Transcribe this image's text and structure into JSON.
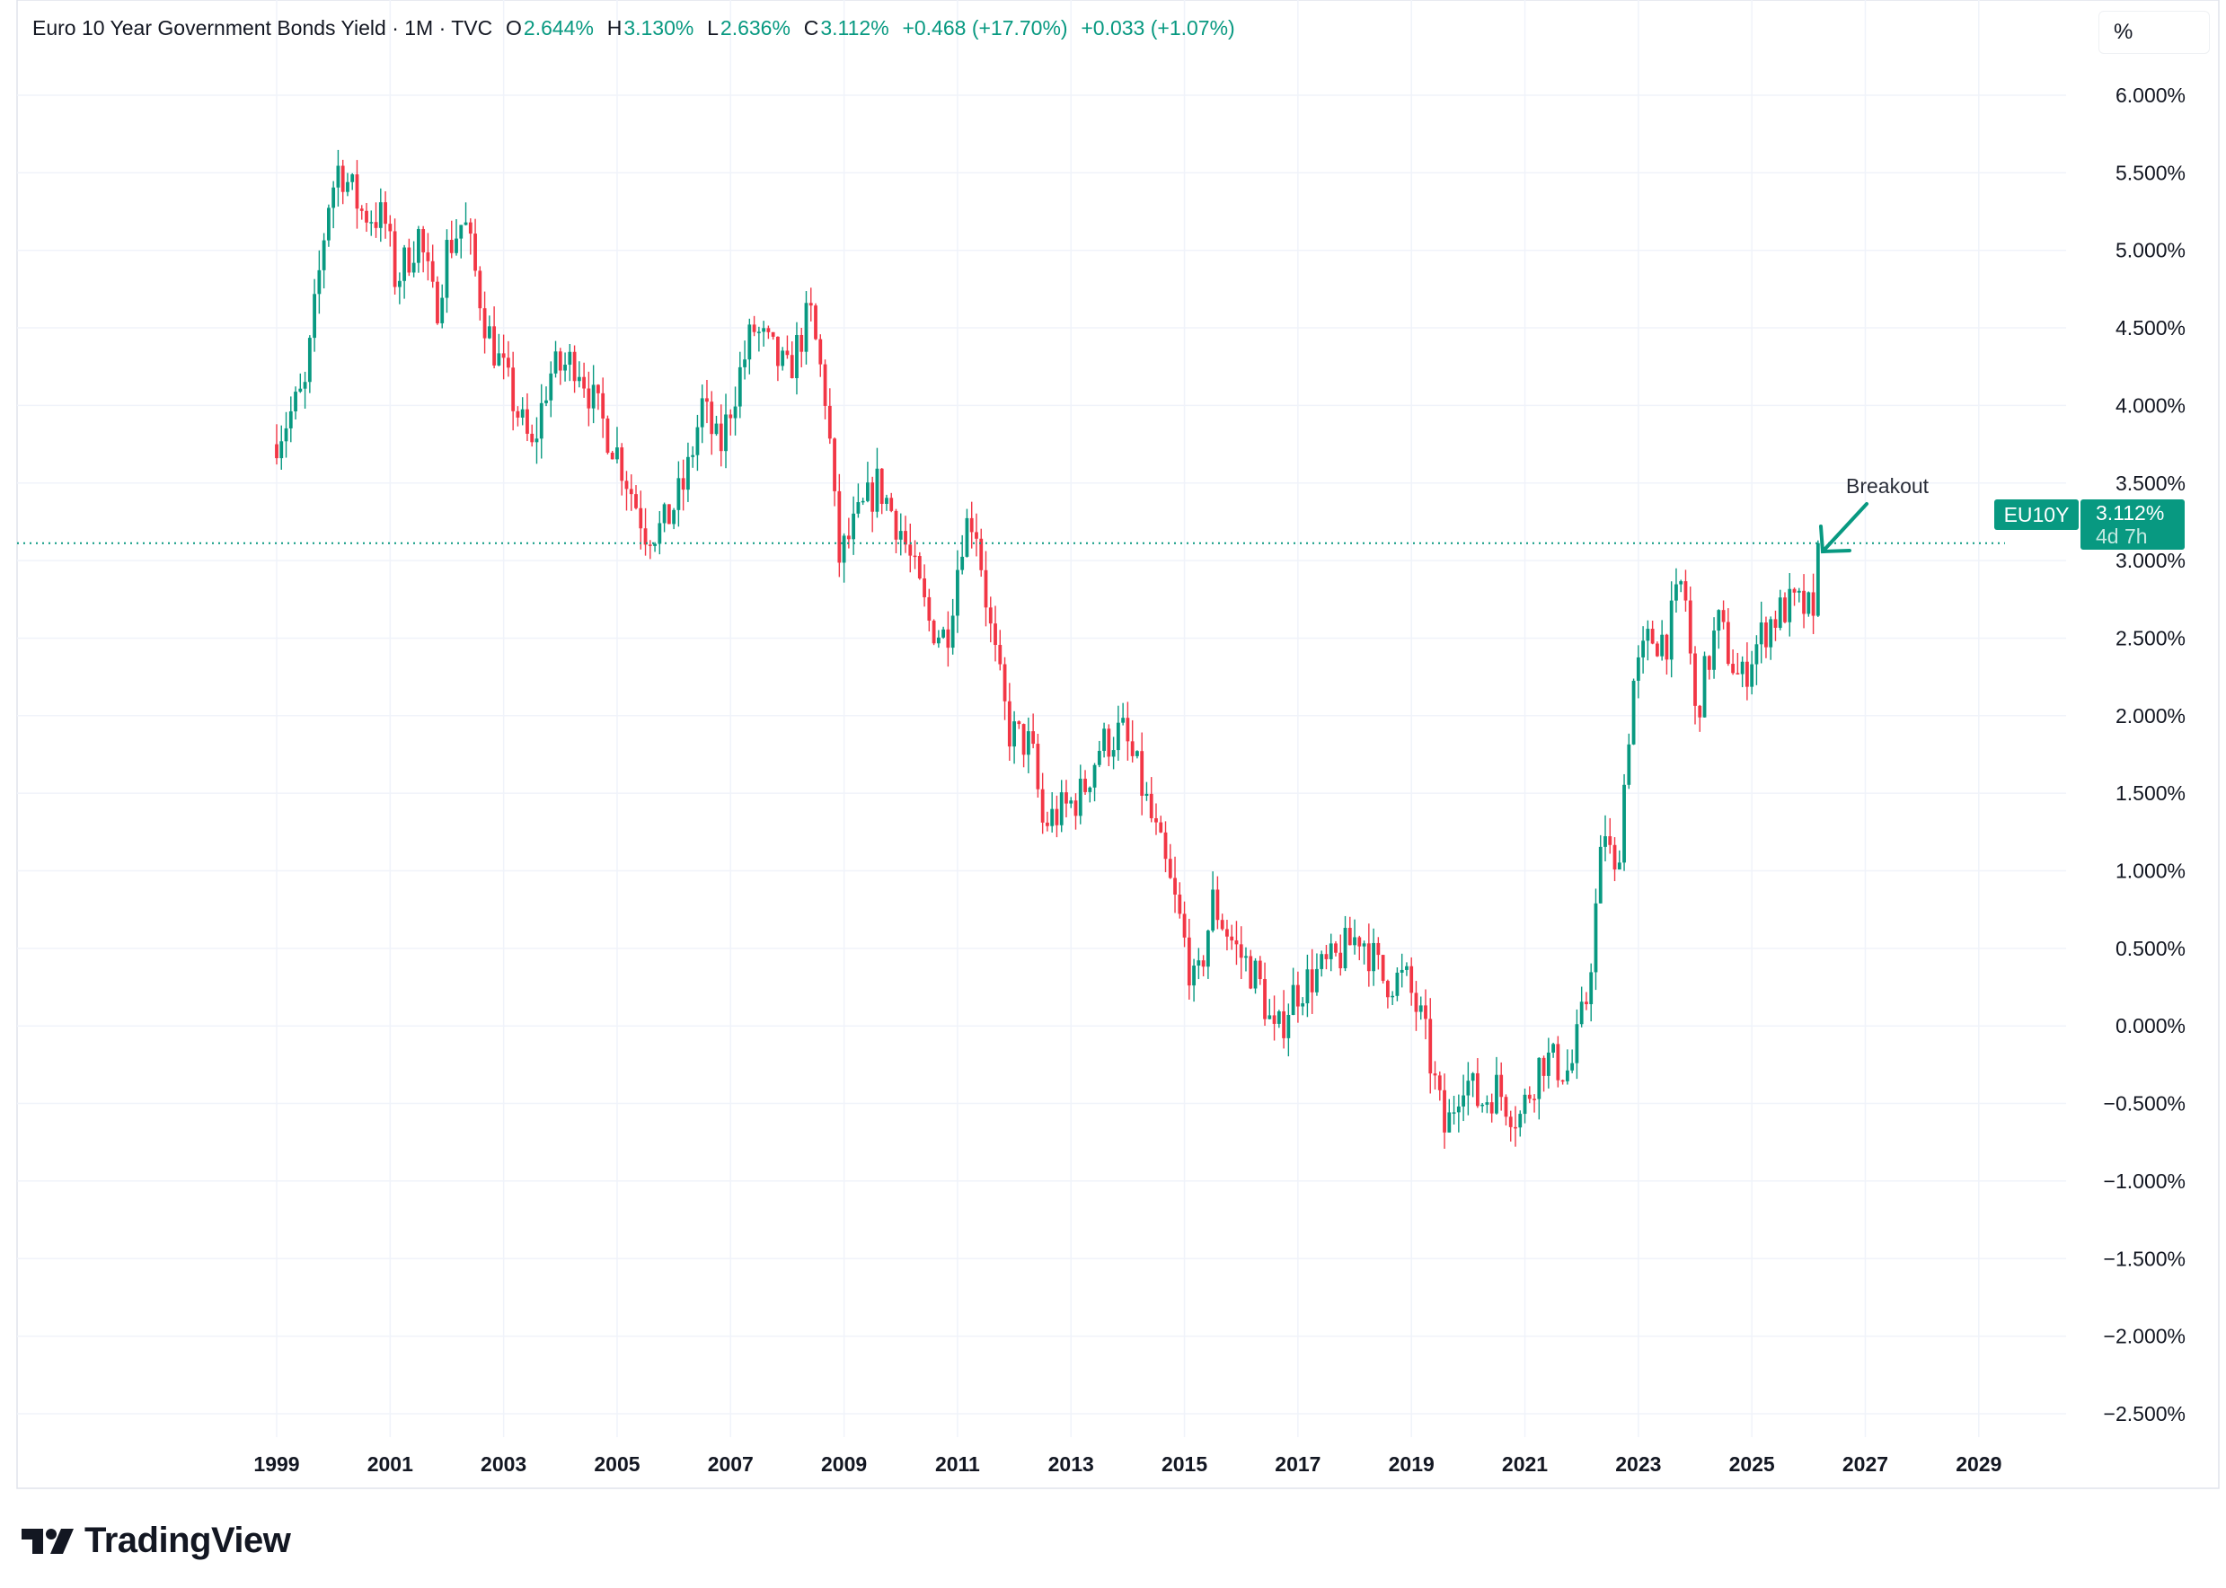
{
  "header": {
    "title": "Euro 10 Year Government Bonds Yield · 1M · TVC",
    "open_label": "O",
    "open": "2.644%",
    "high_label": "H",
    "high": "3.130%",
    "low_label": "L",
    "low": "2.636%",
    "close_label": "C",
    "close": "3.112%",
    "change": "+0.468 (+17.70%)",
    "change2": "+0.033 (+1.07%)"
  },
  "scale_button": "%",
  "price_label": {
    "symbol": "EU10Y",
    "price": "3.112%",
    "countdown": "4d 7h"
  },
  "annotation": "Breakout",
  "brand": "TradingView",
  "colors": {
    "up": "#089981",
    "down": "#F23645",
    "grid": "#f0f3fa",
    "text": "#131722"
  },
  "chart_data": {
    "type": "candlestick",
    "title": "Euro 10 Year Government Bonds Yield",
    "interval": "1M",
    "ylabel": "%",
    "ylim": [
      -2.5,
      6.0
    ],
    "y_ticks": [
      "6.000%",
      "5.500%",
      "5.000%",
      "4.500%",
      "4.000%",
      "3.500%",
      "3.000%",
      "2.500%",
      "2.000%",
      "1.500%",
      "1.000%",
      "0.500%",
      "0.000%",
      "−0.500%",
      "−1.000%",
      "−1.500%",
      "−2.000%",
      "−2.500%"
    ],
    "y_tick_values": [
      6,
      5.5,
      5,
      4.5,
      4,
      3.5,
      3,
      2.5,
      2,
      1.5,
      1,
      0.5,
      0,
      -0.5,
      -1,
      -1.5,
      -2,
      -2.5
    ],
    "x_ticks": [
      "1999",
      "2001",
      "2003",
      "2005",
      "2007",
      "2009",
      "2011",
      "2013",
      "2015",
      "2017",
      "2019",
      "2021",
      "2023",
      "2025",
      "2027",
      "2029"
    ],
    "last_price": 3.112,
    "last_candle": {
      "open": 2.644,
      "high": 3.13,
      "low": 2.636,
      "close": 3.112
    },
    "close_anchors": [
      [
        1999.0,
        3.8
      ],
      [
        1999.5,
        4.1
      ],
      [
        1999.9,
        5.3
      ],
      [
        2000.1,
        5.55
      ],
      [
        2000.5,
        5.25
      ],
      [
        2000.9,
        5.2
      ],
      [
        2001.1,
        4.8
      ],
      [
        2001.5,
        5.1
      ],
      [
        2001.8,
        4.6
      ],
      [
        2002.0,
        5.0
      ],
      [
        2002.3,
        5.2
      ],
      [
        2002.7,
        4.5
      ],
      [
        2003.0,
        4.2
      ],
      [
        2003.5,
        3.7
      ],
      [
        2003.8,
        4.2
      ],
      [
        2004.3,
        4.3
      ],
      [
        2004.6,
        4.0
      ],
      [
        2005.0,
        3.7
      ],
      [
        2005.5,
        3.2
      ],
      [
        2005.8,
        3.2
      ],
      [
        2006.2,
        3.5
      ],
      [
        2006.5,
        4.0
      ],
      [
        2006.8,
        3.7
      ],
      [
        2007.0,
        4.0
      ],
      [
        2007.4,
        4.5
      ],
      [
        2007.6,
        4.4
      ],
      [
        2008.0,
        4.2
      ],
      [
        2008.4,
        4.6
      ],
      [
        2008.7,
        4.0
      ],
      [
        2008.9,
        3.0
      ],
      [
        2009.3,
        3.3
      ],
      [
        2009.6,
        3.5
      ],
      [
        2010.0,
        3.2
      ],
      [
        2010.5,
        2.6
      ],
      [
        2010.8,
        2.5
      ],
      [
        2011.1,
        3.2
      ],
      [
        2011.3,
        3.3
      ],
      [
        2011.6,
        2.5
      ],
      [
        2011.9,
        1.9
      ],
      [
        2012.3,
        1.8
      ],
      [
        2012.5,
        1.3
      ],
      [
        2012.9,
        1.4
      ],
      [
        2013.2,
        1.5
      ],
      [
        2013.5,
        1.8
      ],
      [
        2013.9,
        1.9
      ],
      [
        2014.2,
        1.6
      ],
      [
        2014.6,
        1.1
      ],
      [
        2014.9,
        0.7
      ],
      [
        2015.2,
        0.2
      ],
      [
        2015.5,
        0.8
      ],
      [
        2015.9,
        0.5
      ],
      [
        2016.3,
        0.3
      ],
      [
        2016.6,
        -0.1
      ],
      [
        2016.9,
        0.2
      ],
      [
        2017.2,
        0.3
      ],
      [
        2017.6,
        0.4
      ],
      [
        2018.1,
        0.6
      ],
      [
        2018.5,
        0.3
      ],
      [
        2018.9,
        0.3
      ],
      [
        2019.2,
        0.0
      ],
      [
        2019.6,
        -0.7
      ],
      [
        2019.9,
        -0.3
      ],
      [
        2020.2,
        -0.5
      ],
      [
        2020.5,
        -0.4
      ],
      [
        2020.9,
        -0.6
      ],
      [
        2021.3,
        -0.2
      ],
      [
        2021.8,
        -0.3
      ],
      [
        2022.1,
        0.2
      ],
      [
        2022.4,
        1.3
      ],
      [
        2022.6,
        0.9
      ],
      [
        2022.9,
        2.2
      ],
      [
        2023.2,
        2.5
      ],
      [
        2023.5,
        2.5
      ],
      [
        2023.8,
        2.9
      ],
      [
        2024.0,
        2.0
      ],
      [
        2024.4,
        2.6
      ],
      [
        2024.8,
        2.2
      ],
      [
        2025.0,
        2.4
      ],
      [
        2025.3,
        2.6
      ],
      [
        2025.6,
        2.7
      ],
      [
        2025.9,
        2.7
      ],
      [
        2026.08,
        2.644
      ]
    ]
  }
}
